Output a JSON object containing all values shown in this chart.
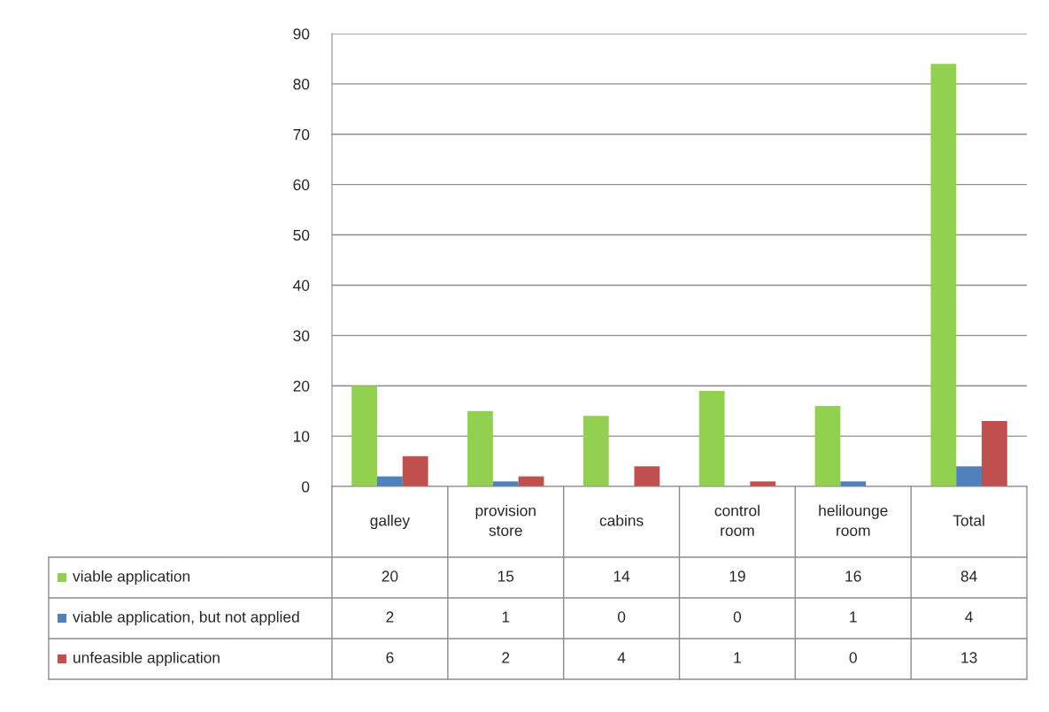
{
  "chart_data": {
    "type": "bar",
    "categories": [
      "galley",
      "provision store",
      "cabins",
      "control room",
      "helilounge room",
      "Total"
    ],
    "series": [
      {
        "name": "viable application",
        "color": "#92d050",
        "values": [
          20,
          15,
          14,
          19,
          16,
          84
        ]
      },
      {
        "name": "viable application, but not applied",
        "color": "#4f81bd",
        "values": [
          2,
          1,
          0,
          0,
          1,
          4
        ]
      },
      {
        "name": "unfeasible application",
        "color": "#c0504d",
        "values": [
          6,
          2,
          4,
          1,
          0,
          13
        ]
      }
    ],
    "ylim": [
      0,
      90
    ],
    "yticks": [
      0,
      10,
      20,
      30,
      40,
      50,
      60,
      70,
      80,
      90
    ],
    "grid": "y",
    "legend": "bottom left",
    "data_labels": true
  }
}
